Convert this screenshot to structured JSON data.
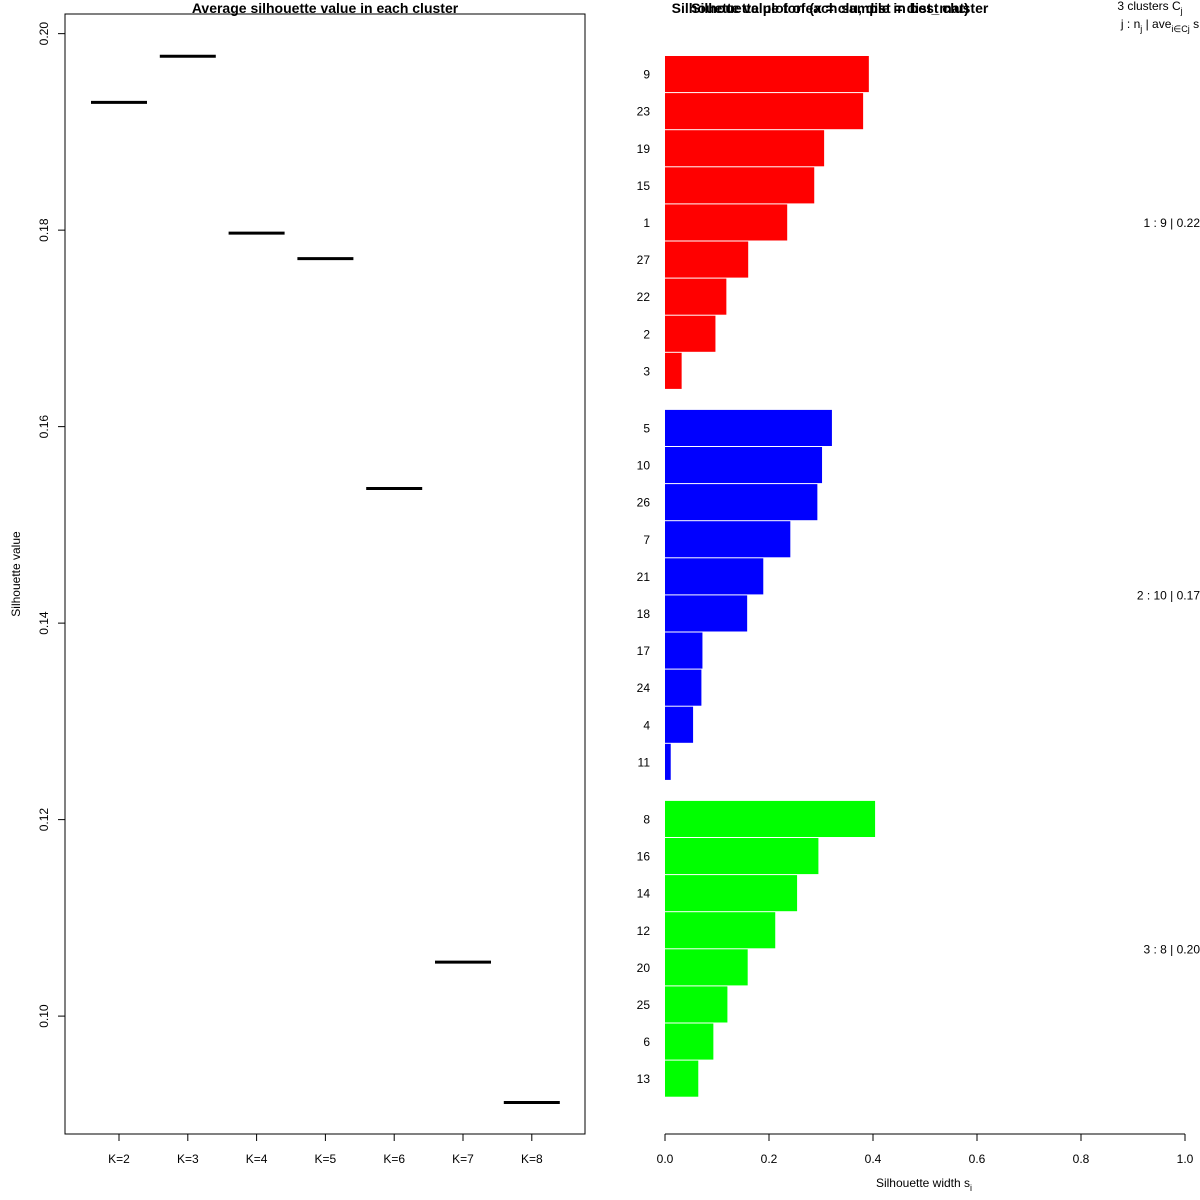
{
  "chart_data": [
    {
      "type": "line",
      "title": "Average silhouette value in each cluster",
      "xlabel": "",
      "ylabel": "Silhouette value",
      "categories": [
        "K=2",
        "K=3",
        "K=4",
        "K=5",
        "K=6",
        "K=7",
        "K=8"
      ],
      "values": [
        0.193,
        0.1977,
        0.1797,
        0.1771,
        0.1537,
        0.1055,
        0.0912
      ],
      "ylim": [
        0.088,
        0.202
      ],
      "yticks": [
        "0.10",
        "0.12",
        "0.14",
        "0.16",
        "0.18",
        "0.20"
      ],
      "grid": false
    },
    {
      "type": "bar",
      "title": "Silhouette value for each sample in best cluster",
      "overlay_title": "Silhouette plot of (x = clu, dist = dist_mat)",
      "xlabel": "Silhouette width s",
      "xlabel_sub": "i",
      "xlim": [
        0,
        1
      ],
      "xticks": [
        "0.0",
        "0.2",
        "0.4",
        "0.6",
        "0.8",
        "1.0"
      ],
      "legend_header_line1": "3 clusters C",
      "legend_header_line1_sub": "j",
      "legend_header_line2": "j : n",
      "legend_header_line2_sub": "j",
      "legend_header_line2_rest": " | ave",
      "legend_header_line2_sub2": "i∈Cj",
      "legend_header_line2_end": " s",
      "clusters": [
        {
          "id": 1,
          "color": "#ff0000",
          "summary": "1 :  9  |  0.22",
          "samples": [
            "9",
            "23",
            "19",
            "15",
            "1",
            "27",
            "22",
            "2",
            "3"
          ],
          "widths": [
            0.392,
            0.381,
            0.306,
            0.287,
            0.235,
            0.16,
            0.118,
            0.097,
            0.032
          ]
        },
        {
          "id": 2,
          "color": "#0000ff",
          "summary": "2 :  10  |  0.17",
          "samples": [
            "5",
            "10",
            "26",
            "7",
            "21",
            "18",
            "17",
            "24",
            "4",
            "11"
          ],
          "widths": [
            0.321,
            0.302,
            0.293,
            0.241,
            0.189,
            0.158,
            0.072,
            0.07,
            0.054,
            0.011
          ]
        },
        {
          "id": 3,
          "color": "#00ff00",
          "summary": "3 :  8  |  0.20",
          "samples": [
            "8",
            "16",
            "14",
            "12",
            "20",
            "25",
            "6",
            "13"
          ],
          "widths": [
            0.404,
            0.295,
            0.254,
            0.212,
            0.159,
            0.12,
            0.093,
            0.064
          ]
        }
      ]
    }
  ]
}
